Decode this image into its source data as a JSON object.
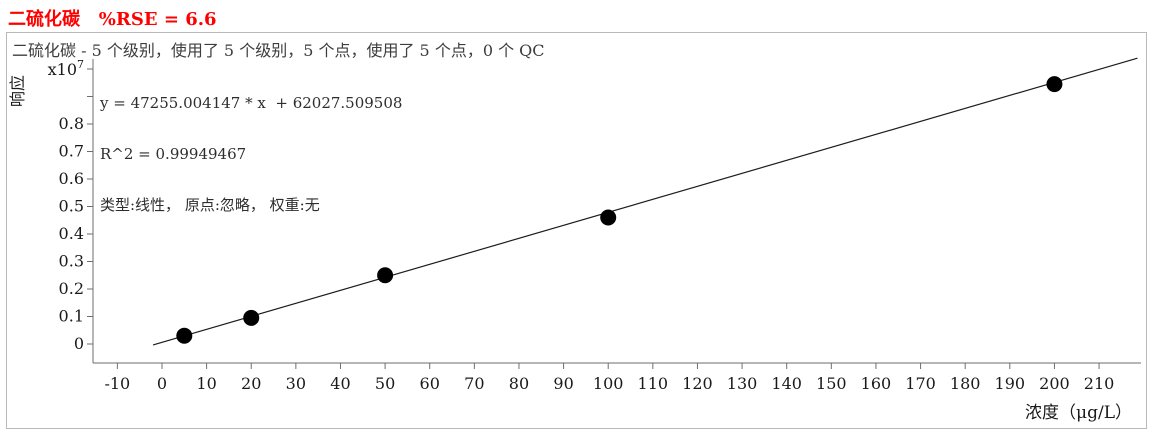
{
  "header": {
    "title": "二硫化碳   %RSE = 6.6"
  },
  "panel": {
    "subtitle": "二硫化碳 - 5 个级别，使用了 5 个级别，5 个点，使用了 5 个点，0 个 QC",
    "equation_line1": "y = 47255.004147 * x  + 62027.509508",
    "equation_line2": "R^2 = 0.99949467",
    "equation_line3": "类型:线性， 原点:忽略， 权重:无"
  },
  "chart_data": {
    "type": "scatter",
    "title": "二硫化碳 %RSE = 6.6",
    "xlabel": "浓度（μg/L）",
    "ylabel": "响应",
    "y_unit_multiplier": "x10^7",
    "x_domain": [
      -15.46,
      219.4
    ],
    "y_domain_e7": [
      -0.0691,
      1.0364
    ],
    "x_ticks": [
      -10,
      0,
      10,
      20,
      30,
      40,
      50,
      60,
      70,
      80,
      90,
      100,
      110,
      120,
      130,
      140,
      150,
      160,
      170,
      180,
      190,
      200,
      210
    ],
    "y_ticks": [
      {
        "value": 0.0,
        "label": "0"
      },
      {
        "value": 0.1,
        "label": "0.1"
      },
      {
        "value": 0.2,
        "label": "0.2"
      },
      {
        "value": 0.3,
        "label": "0.3"
      },
      {
        "value": 0.4,
        "label": "0.4"
      },
      {
        "value": 0.5,
        "label": "0.5"
      },
      {
        "value": 0.6,
        "label": "0.6"
      },
      {
        "value": 0.7,
        "label": "0.7"
      },
      {
        "value": 0.8,
        "label": "0.8"
      },
      {
        "value": 0.9,
        "label": ""
      },
      {
        "value": 1.0,
        "label": "x10^7",
        "is_multiplier": true
      }
    ],
    "points": [
      {
        "conc": 5,
        "response_e7": 0.03
      },
      {
        "conc": 20,
        "response_e7": 0.095
      },
      {
        "conc": 50,
        "response_e7": 0.25
      },
      {
        "conc": 100,
        "response_e7": 0.46
      },
      {
        "conc": 200,
        "response_e7": 0.945
      }
    ],
    "fit": {
      "equation": "y = 47255.004147 * x  + 62027.509508",
      "slope": 47255.004147,
      "intercept": 62027.509508,
      "r_squared": 0.99949467,
      "curve_type": "线性",
      "origin": "忽略",
      "weight": "无",
      "x_start": -2,
      "x_end": 218.6
    },
    "stats": {
      "rse_percent": 6.6,
      "levels": 5,
      "levels_used": 5,
      "points": 5,
      "points_used": 5,
      "qc_count": 0
    }
  }
}
